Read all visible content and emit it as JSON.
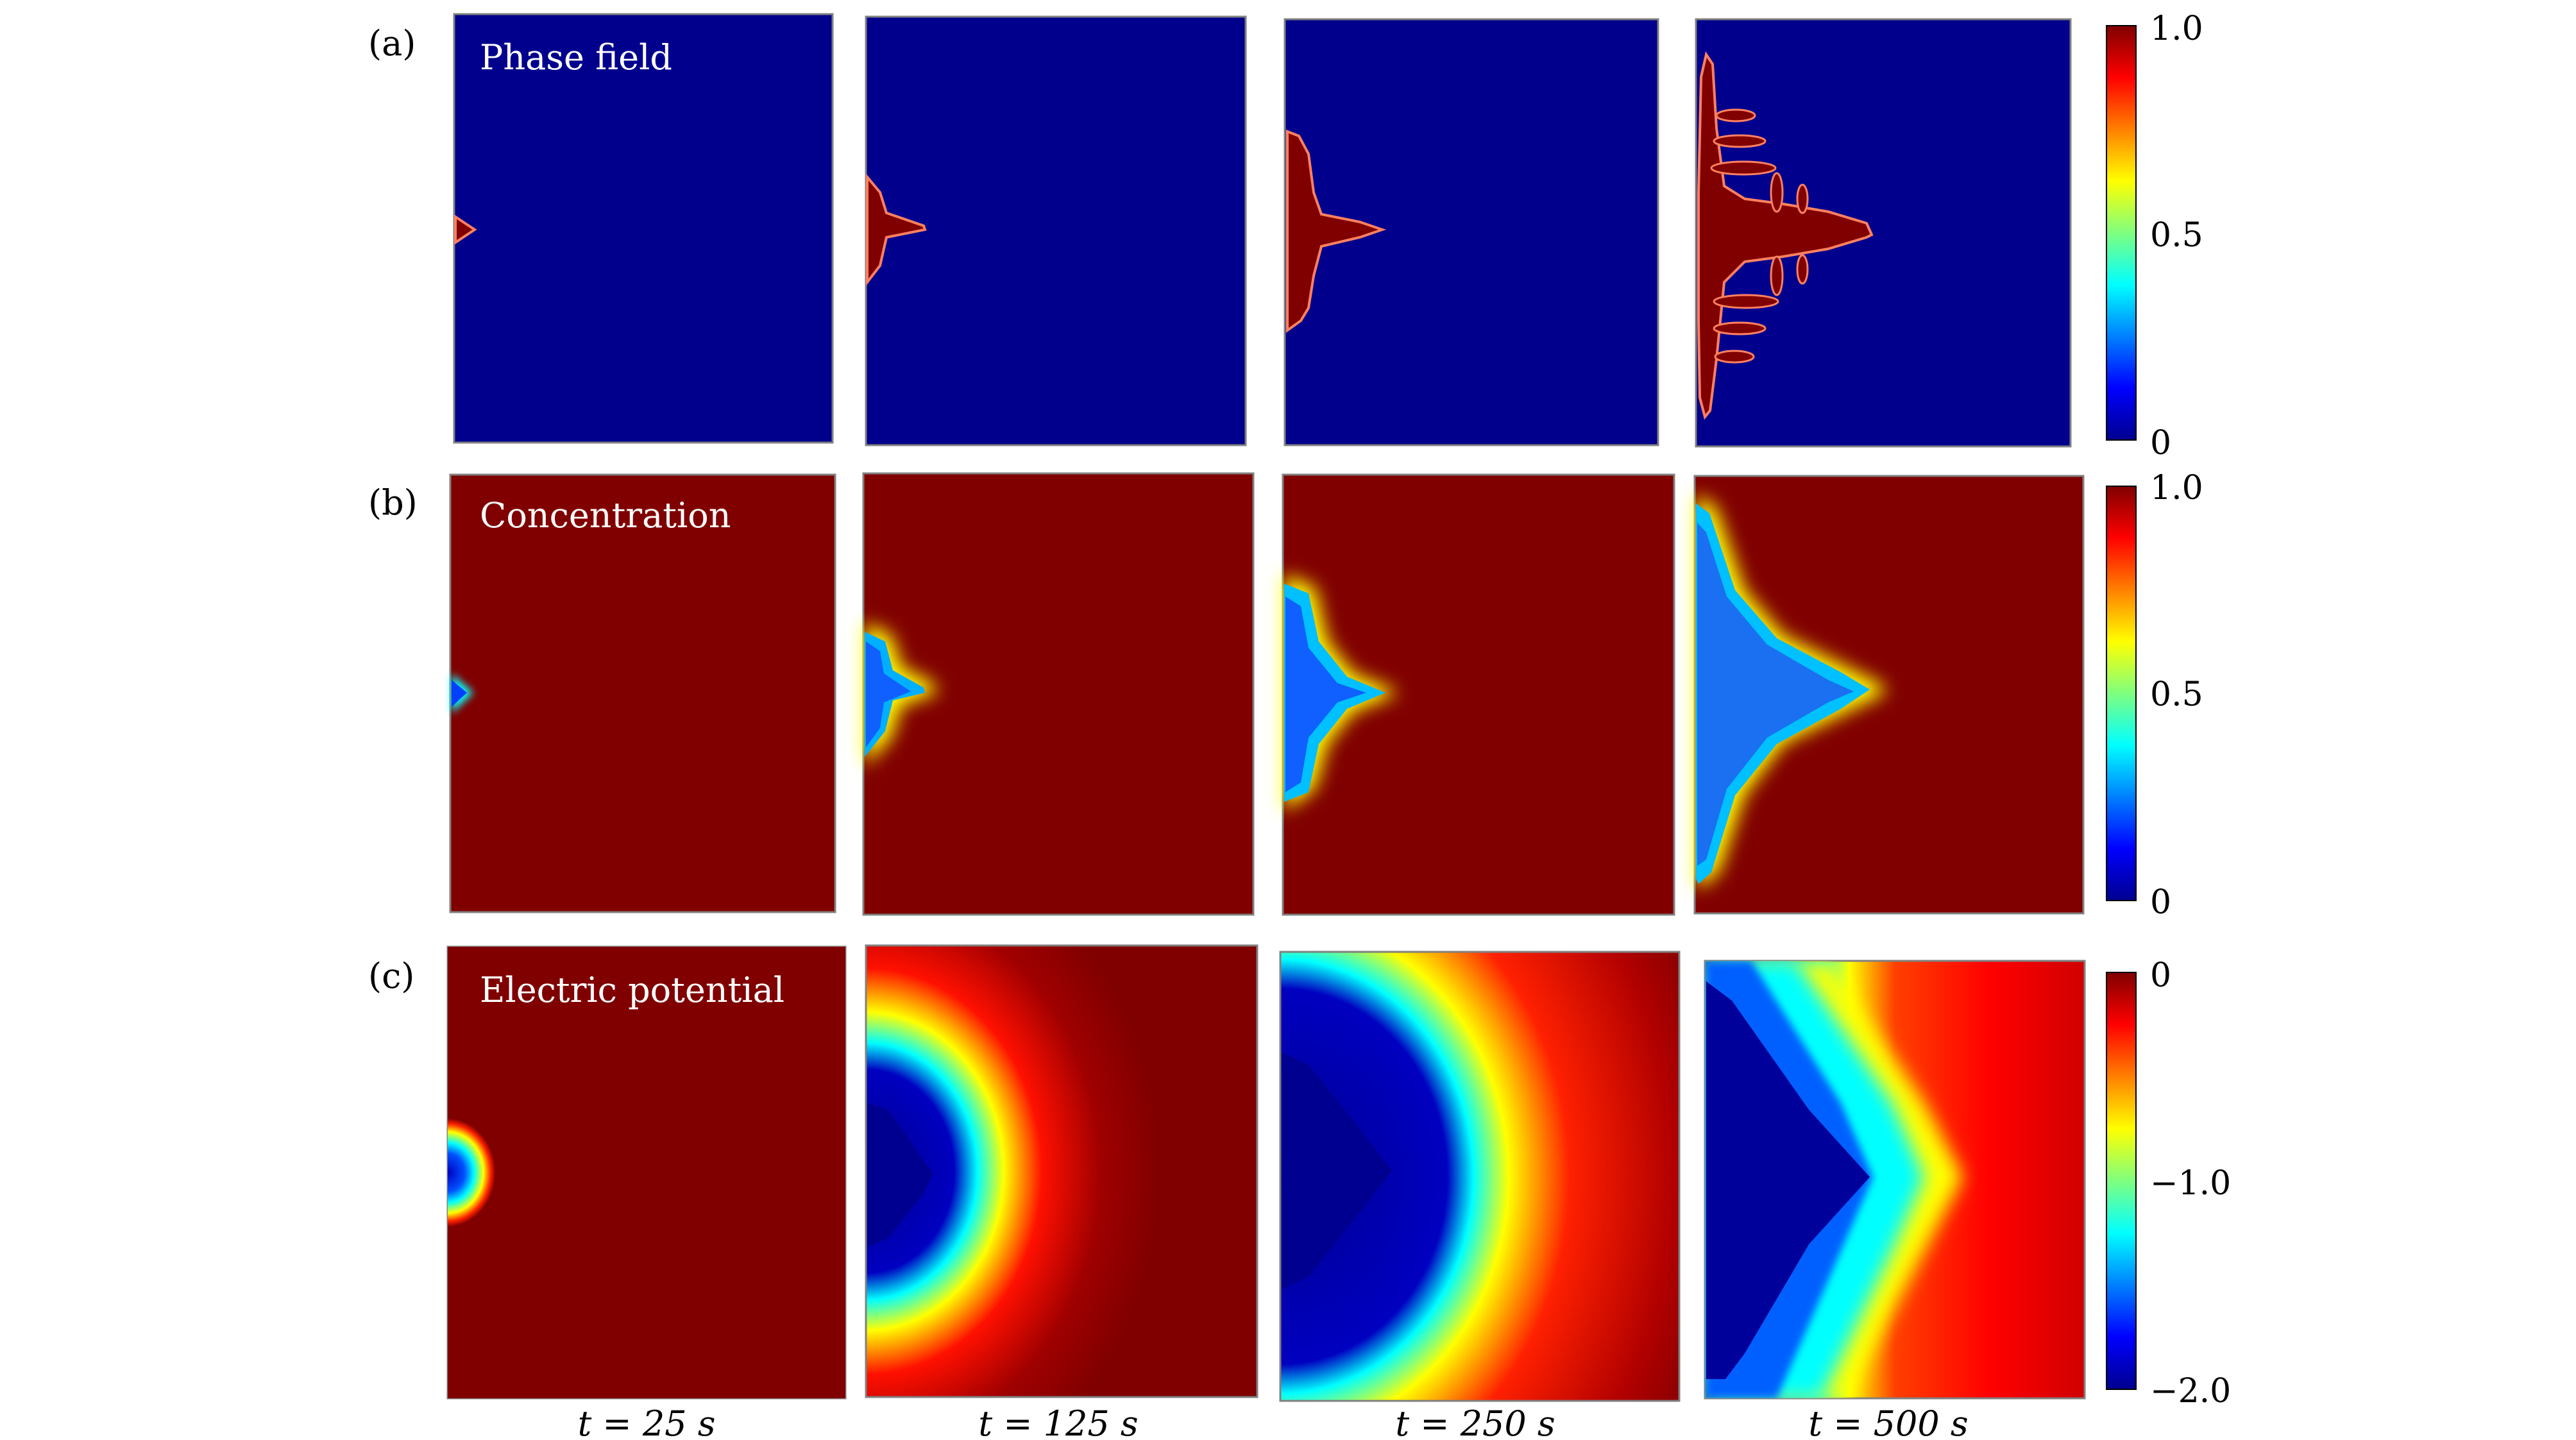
{
  "rows": [
    {
      "letter": "(a)",
      "title": "Phase field",
      "colorbar": {
        "max": "1.0",
        "mid": "0.5",
        "min": "0"
      }
    },
    {
      "letter": "(b)",
      "title": "Concentration",
      "colorbar": {
        "max": "1.0",
        "mid": "0.5",
        "min": "0"
      }
    },
    {
      "letter": "(c)",
      "title": "Electric potential",
      "colorbar": {
        "max": "0",
        "mid": "−1.0",
        "min": "−2.0"
      }
    }
  ],
  "time_labels": [
    "t = 25 s",
    "t = 125 s",
    "t = 250 s",
    "t = 500 s"
  ],
  "colors": {
    "dark_blue": "#00008c",
    "dark_red": "#800000",
    "edge": "#808080"
  }
}
